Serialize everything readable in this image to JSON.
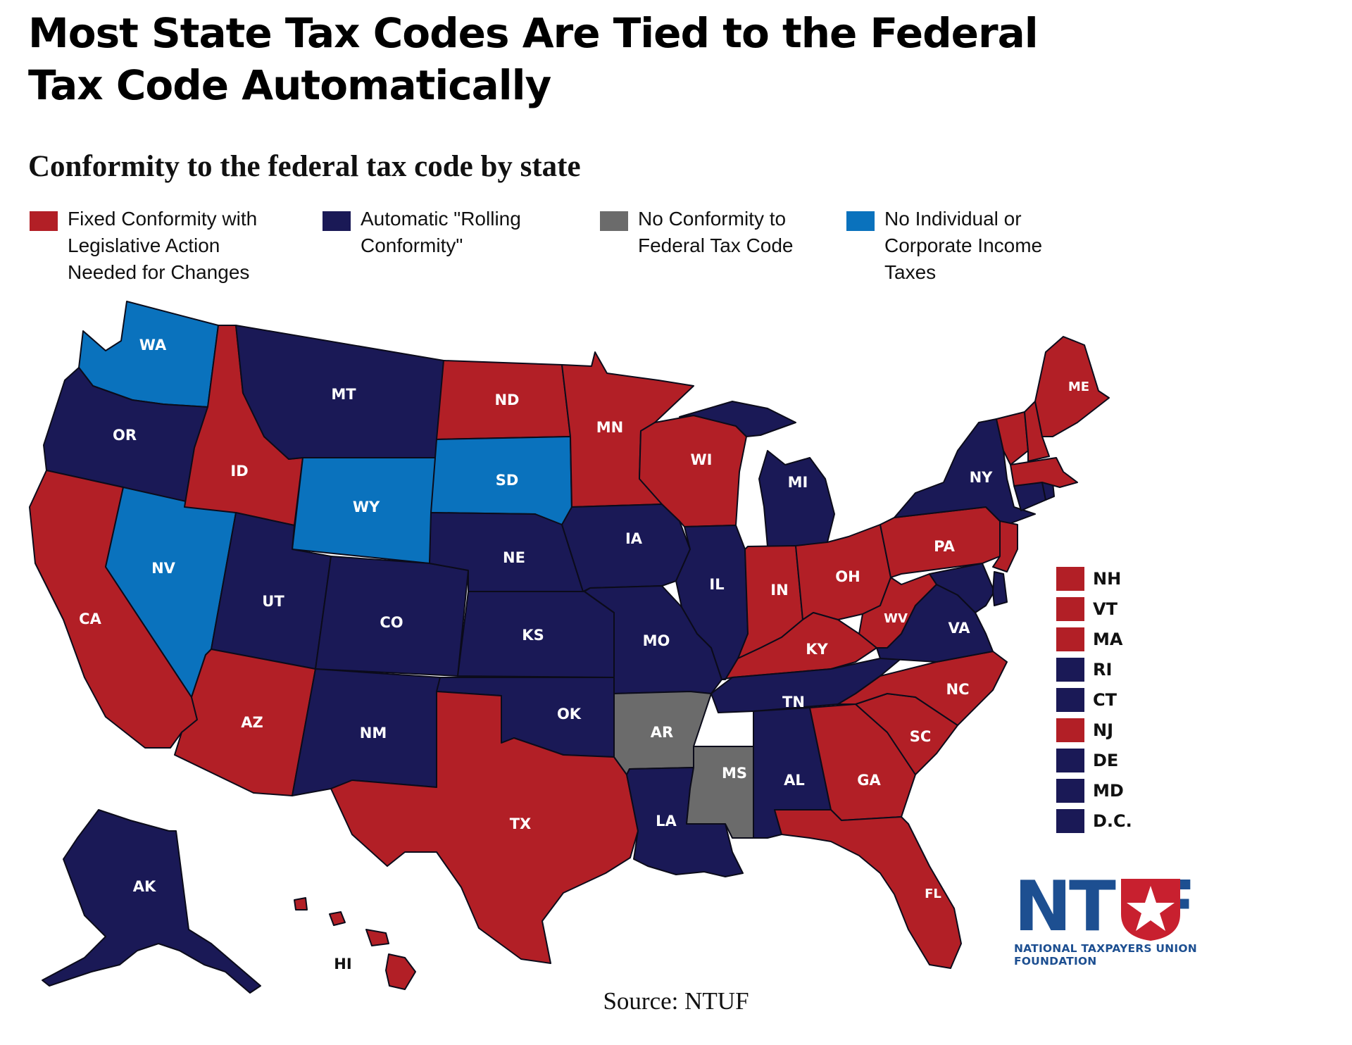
{
  "title": "Most State Tax Codes Are Tied to the Federal Tax Code Automatically",
  "subtitle": "Conformity to the federal tax code by state",
  "colors": {
    "fixed": "#b21f26",
    "rolling": "#1a1956",
    "none": "#6b6b6b",
    "no_tax": "#0a72bd",
    "outline": "#0b0b1a",
    "logo_blue": "#1d4f91",
    "logo_red": "#c8202f"
  },
  "legend": [
    {
      "category": "fixed",
      "label": "Fixed Conformity with\nLegislative Action\nNeeded for Changes"
    },
    {
      "category": "rolling",
      "label": "Automatic \"Rolling\nConformity\""
    },
    {
      "category": "none",
      "label": "No Conformity to\nFederal Tax Code"
    },
    {
      "category": "no_tax",
      "label": "No Individual or\nCorporate Income\nTaxes"
    }
  ],
  "states": {
    "WA": "no_tax",
    "OR": "rolling",
    "CA": "fixed",
    "ID": "fixed",
    "NV": "no_tax",
    "MT": "rolling",
    "WY": "no_tax",
    "UT": "rolling",
    "AZ": "fixed",
    "CO": "rolling",
    "NM": "rolling",
    "ND": "fixed",
    "SD": "no_tax",
    "NE": "rolling",
    "KS": "rolling",
    "OK": "rolling",
    "TX": "fixed",
    "MN": "fixed",
    "IA": "rolling",
    "MO": "rolling",
    "AR": "none",
    "LA": "rolling",
    "WI": "fixed",
    "IL": "rolling",
    "MS": "none",
    "MI": "rolling",
    "IN": "fixed",
    "KY": "fixed",
    "TN": "rolling",
    "AL": "rolling",
    "OH": "fixed",
    "WV": "fixed",
    "GA": "fixed",
    "FL": "fixed",
    "SC": "fixed",
    "NC": "fixed",
    "VA": "rolling",
    "PA": "fixed",
    "NY": "rolling",
    "ME": "fixed",
    "AK": "rolling",
    "HI": "fixed",
    "NH": "fixed",
    "VT": "fixed",
    "MA": "fixed",
    "RI": "rolling",
    "CT": "rolling",
    "NJ": "fixed",
    "DE": "rolling",
    "MD": "rolling",
    "DC": "rolling"
  },
  "small_states": [
    {
      "label": "NH",
      "category": "fixed"
    },
    {
      "label": "VT",
      "category": "fixed"
    },
    {
      "label": "MA",
      "category": "fixed"
    },
    {
      "label": "RI",
      "category": "rolling"
    },
    {
      "label": "CT",
      "category": "rolling"
    },
    {
      "label": "NJ",
      "category": "fixed"
    },
    {
      "label": "DE",
      "category": "rolling"
    },
    {
      "label": "MD",
      "category": "rolling"
    },
    {
      "label": "D.C.",
      "category": "rolling"
    }
  ],
  "map_labels": {
    "WA": "WA",
    "OR": "OR",
    "CA": "CA",
    "ID": "ID",
    "NV": "NV",
    "MT": "MT",
    "WY": "WY",
    "UT": "UT",
    "AZ": "AZ",
    "CO": "CO",
    "NM": "NM",
    "ND": "ND",
    "SD": "SD",
    "NE": "NE",
    "KS": "KS",
    "OK": "OK",
    "TX": "TX",
    "MN": "MN",
    "IA": "IA",
    "MO": "MO",
    "AR": "AR",
    "LA": "LA",
    "WI": "WI",
    "IL": "IL",
    "MS": "MS",
    "MI": "MI",
    "IN": "IN",
    "KY": "KY",
    "TN": "TN",
    "AL": "AL",
    "OH": "OH",
    "WV": "WV",
    "GA": "GA",
    "FL": "FL",
    "SC": "SC",
    "NC": "NC",
    "VA": "VA",
    "PA": "PA",
    "NY": "NY",
    "ME": "ME",
    "AK": "AK",
    "HI": "HI"
  },
  "logo": {
    "text": "NTUF",
    "subtitle": "NATIONAL TAXPAYERS UNION FOUNDATION"
  },
  "source": "Source: NTUF"
}
